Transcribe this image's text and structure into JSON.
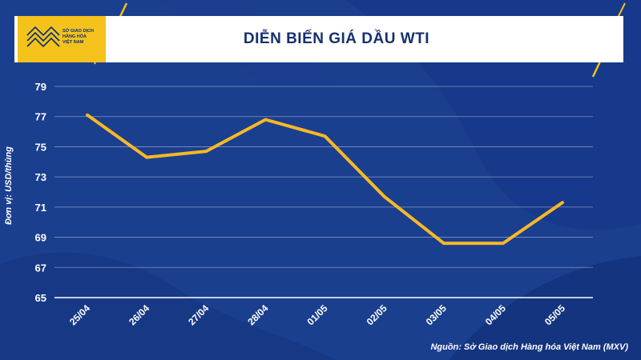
{
  "header": {
    "title": "DIỄN BIẾN GIÁ DẦU WTI",
    "logo_lines": [
      "SỞ GIAO DỊCH",
      "HÀNG HÓA",
      "VIỆT NAM"
    ]
  },
  "footer": {
    "source": "Nguồn: Sở Giao dịch Hàng hóa Việt Nam (MXV)"
  },
  "colors": {
    "background": "#1b3f8f",
    "background_dark": "#0f2a6a",
    "line": "#f7b924",
    "accent": "#f4c21b",
    "grid": "#ffffff"
  },
  "chart_data": {
    "type": "line",
    "title": "DIỄN BIẾN GIÁ DẦU WTI",
    "xlabel": "",
    "ylabel": "Đơn vị: USD/thùng",
    "categories": [
      "25/04",
      "26/04",
      "27/04",
      "28/04",
      "01/05",
      "02/05",
      "03/05",
      "04/05",
      "05/05"
    ],
    "series": [
      {
        "values": [
          77.1,
          74.3,
          74.7,
          76.8,
          75.7,
          71.7,
          68.6,
          68.6,
          71.3
        ]
      }
    ],
    "yticks": [
      65,
      67,
      69,
      71,
      73,
      75,
      77,
      79
    ],
    "ylim": [
      65,
      79
    ],
    "grid": true,
    "legend": "none"
  }
}
